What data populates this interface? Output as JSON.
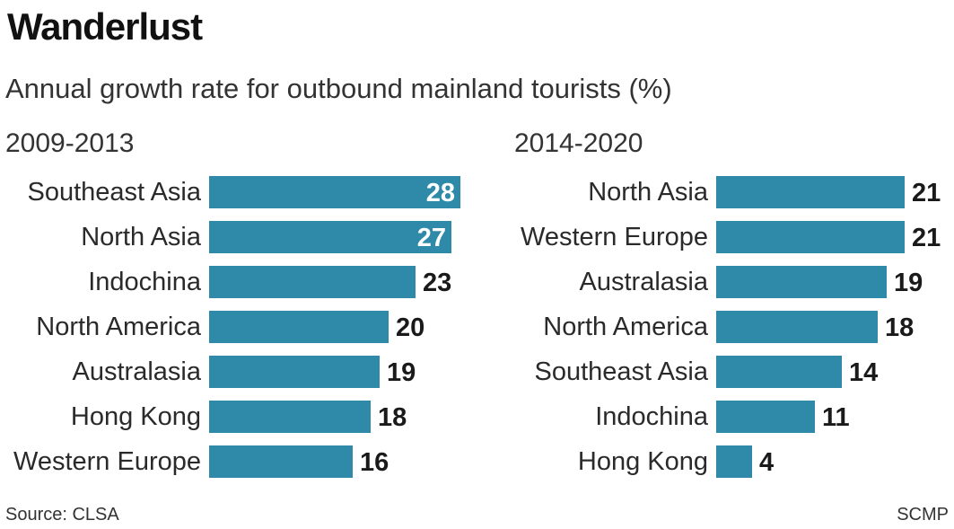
{
  "header": {
    "title": "Wanderlust",
    "subtitle": "Annual growth rate for outbound mainland tourists (%)"
  },
  "footer": {
    "source": "Source: CLSA",
    "credit": "SCMP"
  },
  "colors": {
    "bar": "#2e8aa8",
    "label_inside": "#ffffff",
    "label_outside": "#1a1a1a"
  },
  "chart_data": [
    {
      "type": "bar",
      "orientation": "horizontal",
      "title": "2009-2013",
      "categories": [
        "Southeast Asia",
        "North Asia",
        "Indochina",
        "North America",
        "Australasia",
        "Hong Kong",
        "Western Europe"
      ],
      "values": [
        28,
        27,
        23,
        20,
        19,
        18,
        16
      ],
      "xlim": [
        0,
        28
      ]
    },
    {
      "type": "bar",
      "orientation": "horizontal",
      "title": "2014-2020",
      "categories": [
        "North Asia",
        "Western Europe",
        "Australasia",
        "North America",
        "Southeast Asia",
        "Indochina",
        "Hong Kong"
      ],
      "values": [
        21,
        21,
        19,
        18,
        14,
        11,
        4
      ],
      "xlim": [
        0,
        28
      ]
    }
  ]
}
